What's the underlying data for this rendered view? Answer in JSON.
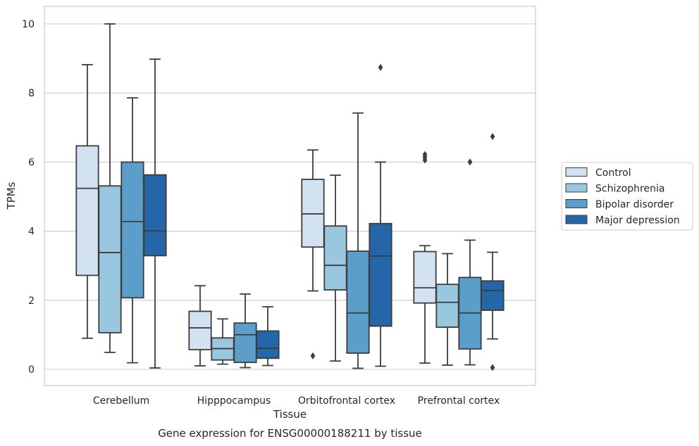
{
  "chart_data": {
    "type": "box",
    "xlabel": "Tissue",
    "ylabel": "TPMs",
    "caption": "Gene expression for ENSG00000188211 by tissue",
    "ylim": [
      -0.45,
      10.5
    ],
    "yticks": [
      "0",
      "2",
      "4",
      "6",
      "8",
      "10"
    ],
    "grid": "horizontal",
    "legend_position": "right",
    "categories": [
      "Cerebellum",
      "Hipppocampus",
      "Orbitofrontal cortex",
      "Prefrontal cortex"
    ],
    "series": [
      {
        "name": "Control",
        "color": "#d2e2f1",
        "boxes": [
          {
            "whislo": 0.9,
            "q1": 2.72,
            "med": 5.24,
            "q3": 6.47,
            "whishi": 8.82,
            "fliers": []
          },
          {
            "whislo": 0.1,
            "q1": 0.57,
            "med": 1.2,
            "q3": 1.68,
            "whishi": 2.42,
            "fliers": []
          },
          {
            "whislo": 2.27,
            "q1": 3.54,
            "med": 4.5,
            "q3": 5.5,
            "whishi": 6.35,
            "fliers": [
              0.39
            ]
          },
          {
            "whislo": 0.18,
            "q1": 1.92,
            "med": 2.36,
            "q3": 3.41,
            "whishi": 3.58,
            "fliers": [
              6.06,
              6.14,
              6.22
            ]
          }
        ]
      },
      {
        "name": "Schizophrenia",
        "color": "#9ac7e0",
        "boxes": [
          {
            "whislo": 0.49,
            "q1": 1.06,
            "med": 3.38,
            "q3": 5.31,
            "whishi": 10.0,
            "fliers": []
          },
          {
            "whislo": 0.15,
            "q1": 0.27,
            "med": 0.6,
            "q3": 0.91,
            "whishi": 1.46,
            "fliers": []
          },
          {
            "whislo": 0.24,
            "q1": 2.3,
            "med": 3.01,
            "q3": 4.15,
            "whishi": 5.62,
            "fliers": []
          },
          {
            "whislo": 0.12,
            "q1": 1.22,
            "med": 1.94,
            "q3": 2.46,
            "whishi": 3.35,
            "fliers": []
          }
        ]
      },
      {
        "name": "Bipolar disorder",
        "color": "#5a9ec9",
        "boxes": [
          {
            "whislo": 0.19,
            "q1": 2.07,
            "med": 4.28,
            "q3": 6.0,
            "whishi": 7.86,
            "fliers": []
          },
          {
            "whislo": 0.05,
            "q1": 0.2,
            "med": 1.0,
            "q3": 1.34,
            "whishi": 2.18,
            "fliers": []
          },
          {
            "whislo": 0.03,
            "q1": 0.47,
            "med": 1.63,
            "q3": 3.42,
            "whishi": 7.42,
            "fliers": []
          },
          {
            "whislo": 0.13,
            "q1": 0.59,
            "med": 1.63,
            "q3": 2.66,
            "whishi": 3.74,
            "fliers": [
              6.0
            ]
          }
        ]
      },
      {
        "name": "Major depression",
        "color": "#2566a9",
        "boxes": [
          {
            "whislo": 0.04,
            "q1": 3.29,
            "med": 4.01,
            "q3": 5.63,
            "whishi": 8.98,
            "fliers": []
          },
          {
            "whislo": 0.11,
            "q1": 0.32,
            "med": 0.61,
            "q3": 1.11,
            "whishi": 1.81,
            "fliers": []
          },
          {
            "whislo": 0.09,
            "q1": 1.25,
            "med": 3.28,
            "q3": 4.22,
            "whishi": 6.0,
            "fliers": [
              8.74
            ]
          },
          {
            "whislo": 0.88,
            "q1": 1.71,
            "med": 2.28,
            "q3": 2.56,
            "whishi": 3.39,
            "fliers": [
              0.05,
              6.74
            ]
          }
        ]
      }
    ]
  }
}
